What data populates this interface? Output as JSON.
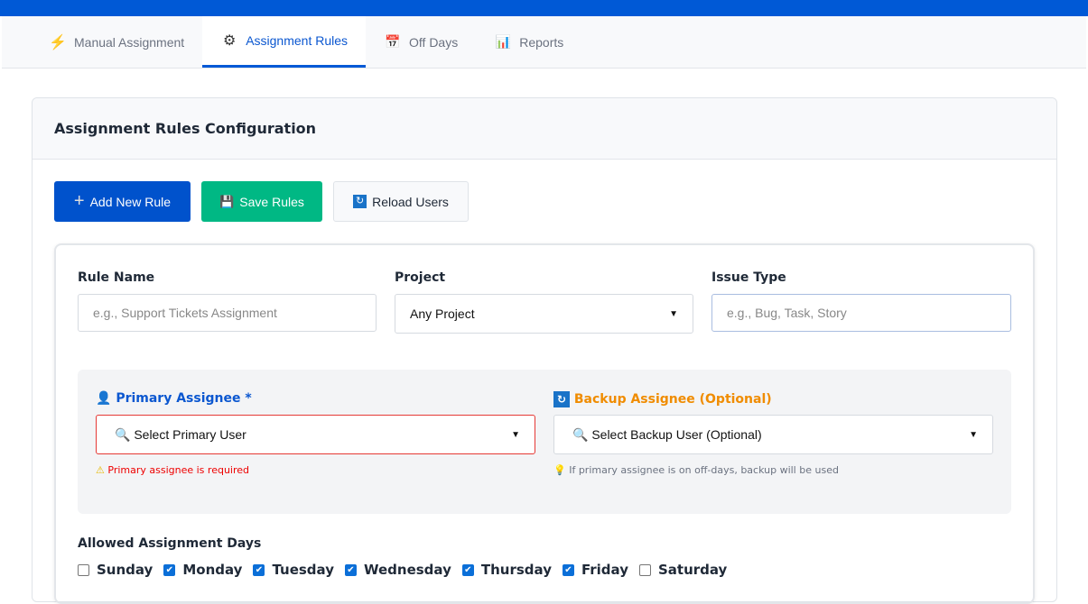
{
  "tabs": [
    {
      "label": "Manual Assignment",
      "icon": "lightning-icon",
      "glyph": "⚡"
    },
    {
      "label": "Assignment Rules",
      "icon": "gear-icon",
      "glyph": "⚙"
    },
    {
      "label": "Off Days",
      "icon": "calendar-icon",
      "glyph": "📅"
    },
    {
      "label": "Reports",
      "icon": "bar-chart-icon",
      "glyph": "📊"
    }
  ],
  "active_tab": "Assignment Rules",
  "card": {
    "title": "Assignment Rules Configuration"
  },
  "toolbar": {
    "add": "Add New Rule",
    "save": "Save Rules",
    "reload": "Reload Users"
  },
  "form": {
    "rule_name": {
      "label": "Rule Name",
      "placeholder": "e.g., Support Tickets Assignment"
    },
    "project": {
      "label": "Project",
      "value": "Any Project"
    },
    "issue_type": {
      "label": "Issue Type",
      "placeholder": "e.g., Bug, Task, Story"
    },
    "primary": {
      "label": "Primary Assignee *",
      "value": "🔍 Select Primary User",
      "error": "Primary assignee is required",
      "color": "#0b57d0"
    },
    "backup": {
      "label": "Backup Assignee (Optional)",
      "value": "🔍 Select Backup User (Optional)",
      "hint": "If primary assignee is on off-days, backup will be used",
      "color": "#f08c00"
    },
    "days_label": "Allowed Assignment Days",
    "days": [
      {
        "label": "Sunday",
        "checked": false
      },
      {
        "label": "Monday",
        "checked": true
      },
      {
        "label": "Tuesday",
        "checked": true
      },
      {
        "label": "Wednesday",
        "checked": true
      },
      {
        "label": "Thursday",
        "checked": true
      },
      {
        "label": "Friday",
        "checked": true
      },
      {
        "label": "Saturday",
        "checked": false
      }
    ]
  }
}
